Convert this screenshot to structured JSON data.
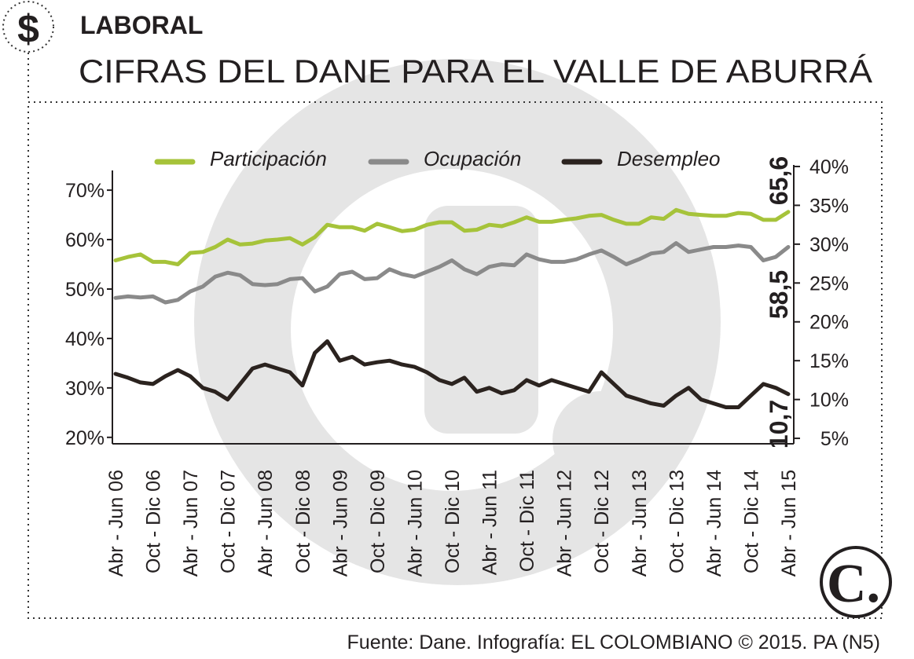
{
  "header": {
    "section": "LABORAL",
    "title": "CIFRAS DEL DANE PARA EL VALLE DE ABURRÁ"
  },
  "footer": "Fuente: Dane. Infografía: EL COLOMBIANO © 2015. PA (N5)",
  "chart_data": {
    "type": "line",
    "categories": [
      "Abr - Jun 06",
      null,
      null,
      "Oct - Dic 06",
      null,
      null,
      "Abr - Jun 07",
      null,
      null,
      "Oct - Dic 07",
      null,
      null,
      "Abr - Jun 08",
      null,
      null,
      "Oct - Dic 08",
      null,
      null,
      "Abr - Jun 09",
      null,
      null,
      "Oct - Dic 09",
      null,
      null,
      "Abr - Jun 10",
      null,
      null,
      "Oct - Dic 10",
      null,
      null,
      "Abr - Jun 11",
      null,
      null,
      "Oct - Dic 11",
      null,
      null,
      "Abr - Jun 12",
      null,
      null,
      "Oct - Dic 12",
      null,
      null,
      "Abr - Jun 13",
      null,
      null,
      "Oct - Dic 13",
      null,
      null,
      "Abr - Jun 14",
      null,
      null,
      "Oct - Dic 14",
      null,
      null,
      "Abr - Jun 15"
    ],
    "series": [
      {
        "name": "Participación",
        "color": "#a6c33a",
        "values": [
          55.8,
          56.5,
          57,
          55.5,
          55.5,
          55,
          57.3,
          57.5,
          58.5,
          60,
          59,
          59.2,
          59.8,
          60,
          60.3,
          59,
          60.5,
          63,
          62.5,
          62.5,
          61.8,
          63.2,
          62.5,
          61.7,
          62,
          63,
          63.5,
          63.5,
          61.8,
          62,
          63,
          62.7,
          63.5,
          64.5,
          63.6,
          63.6,
          64,
          64.3,
          64.8,
          65,
          64,
          63.2,
          63.2,
          64.5,
          64.2,
          66,
          65.2,
          65,
          64.8,
          64.8,
          65.4,
          65.2,
          64,
          64,
          65.6
        ]
      },
      {
        "name": "Ocupación",
        "color": "#8a8a8a",
        "values": [
          48.2,
          48.5,
          48.3,
          48.5,
          47.3,
          47.8,
          49.5,
          50.5,
          52.5,
          53.3,
          52.8,
          51,
          50.8,
          51,
          52,
          52.2,
          49.5,
          50.5,
          53,
          53.5,
          52,
          52.2,
          54,
          53,
          52.5,
          53.5,
          54.5,
          55.8,
          54,
          53,
          54.5,
          55,
          54.8,
          57,
          56,
          55.5,
          55.5,
          56,
          57,
          57.8,
          56.5,
          55,
          56,
          57.2,
          57.5,
          59.3,
          57.5,
          58,
          58.5,
          58.5,
          58.8,
          58.5,
          55.8,
          56.5,
          58.5
        ]
      },
      {
        "name": "Desempleo",
        "color": "#2b231f",
        "axis": "y2",
        "values": [
          13.3,
          12.8,
          12.2,
          12,
          13,
          13.8,
          13,
          11.5,
          11,
          10,
          12,
          14,
          14.5,
          14,
          13.5,
          11.8,
          16,
          17.5,
          15,
          15.5,
          14.5,
          14.8,
          15,
          14.5,
          14.2,
          13.5,
          12.5,
          12,
          12.8,
          11,
          11.5,
          10.8,
          11.2,
          12.5,
          11.8,
          12.5,
          12,
          11.5,
          11,
          13.5,
          12,
          10.5,
          10,
          9.5,
          9.2,
          10.5,
          11.5,
          10,
          9.5,
          9,
          9,
          10.5,
          12,
          11.5,
          10.7
        ]
      }
    ],
    "end_labels": [
      "65,6",
      "58,5",
      "10,7"
    ],
    "ylim": [
      18.7,
      75.1
    ],
    "yticks": [
      {
        "value": 20,
        "label": "20%"
      },
      {
        "value": 30,
        "label": "30%"
      },
      {
        "value": 40,
        "label": "40%"
      },
      {
        "value": 50,
        "label": "50%"
      },
      {
        "value": 60,
        "label": "60%"
      },
      {
        "value": 70,
        "label": "70%"
      }
    ],
    "y2lim": [
      4.3,
      40.2
    ],
    "y2ticks": [
      {
        "value": 5,
        "label": "5%"
      },
      {
        "value": 10,
        "label": "10%"
      },
      {
        "value": 15,
        "label": "15%"
      },
      {
        "value": 20,
        "label": "20%"
      },
      {
        "value": 25,
        "label": "25%"
      },
      {
        "value": 30,
        "label": "30%"
      },
      {
        "value": 35,
        "label": "35%"
      },
      {
        "value": 40,
        "label": "40%"
      }
    ],
    "legend": "top"
  }
}
